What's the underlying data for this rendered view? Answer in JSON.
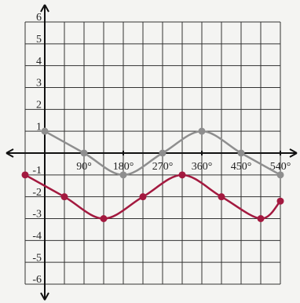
{
  "chart_data": {
    "type": "line",
    "xlim": [
      -45,
      540
    ],
    "ylim": [
      -6,
      6
    ],
    "xticks": [
      {
        "value": 90,
        "label": "90°"
      },
      {
        "value": 180,
        "label": "180°"
      },
      {
        "value": 270,
        "label": "270°"
      },
      {
        "value": 360,
        "label": "360°"
      },
      {
        "value": 450,
        "label": "450°"
      },
      {
        "value": 540,
        "label": "540°"
      }
    ],
    "yticks": [
      -6,
      -5,
      -4,
      -3,
      -2,
      -1,
      1,
      2,
      3,
      4,
      5,
      6
    ],
    "grid": true,
    "markers": true,
    "series": [
      {
        "color": "#8e8e8e",
        "x": [
          0,
          90,
          180,
          270,
          360,
          450,
          540
        ],
        "values": [
          1,
          0,
          -1,
          0,
          1,
          0,
          -1
        ]
      },
      {
        "color": "#a3193f",
        "x": [
          -45,
          45,
          135,
          225,
          315,
          405,
          495,
          540
        ],
        "values": [
          -1,
          -2,
          -3,
          -2,
          -1,
          -2,
          -3,
          -2.2
        ]
      }
    ]
  }
}
